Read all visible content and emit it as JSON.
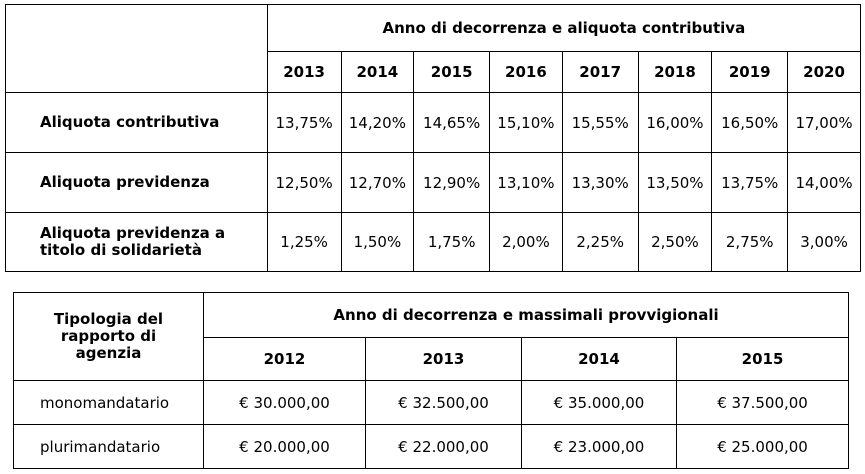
{
  "table1": {
    "group_header": "Anno di decorrenza e aliquota contributiva",
    "years": [
      "2013",
      "2014",
      "2015",
      "2016",
      "2017",
      "2018",
      "2019",
      "2020"
    ],
    "rows": [
      {
        "label": "Aliquota contributiva",
        "values": [
          "13,75%",
          "14,20%",
          "14,65%",
          "15,10%",
          "15,55%",
          "16,00%",
          "16,50%",
          "17,00%"
        ]
      },
      {
        "label": "Aliquota previdenza",
        "values": [
          "12,50%",
          "12,70%",
          "12,90%",
          "13,10%",
          "13,30%",
          "13,50%",
          "13,75%",
          "14,00%"
        ]
      },
      {
        "label_line1": "Aliquota previdenza a",
        "label_line2": "titolo di solidarietà",
        "values": [
          "1,25%",
          "1,50%",
          "1,75%",
          "2,00%",
          "2,25%",
          "2,50%",
          "2,75%",
          "3,00%"
        ]
      }
    ]
  },
  "table2": {
    "label_header_lines": [
      "Tipologia del",
      "rapporto di",
      "agenzia"
    ],
    "group_header": "Anno di decorrenza e massimali provvigionali",
    "years": [
      "2012",
      "2013",
      "2014",
      "2015"
    ],
    "rows": [
      {
        "label": "monomandatario",
        "values": [
          "€ 30.000,00",
          "€ 32.500,00",
          "€ 35.000,00",
          "€ 37.500,00"
        ]
      },
      {
        "label": "plurimandatario",
        "values": [
          "€ 20.000,00",
          "€ 22.000,00",
          "€ 23.000,00",
          "€ 25.000,00"
        ]
      }
    ]
  }
}
